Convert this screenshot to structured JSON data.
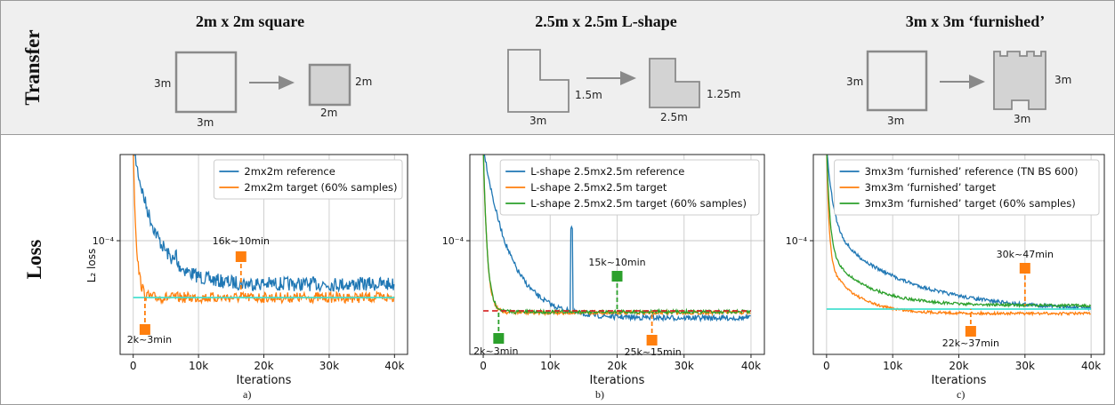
{
  "row_labels": {
    "transfer": "Transfer",
    "loss": "Loss"
  },
  "panel_titles": [
    "2m x 2m square",
    "2.5m x 2.5m L-shape",
    "3m x 3m ‘furnished’"
  ],
  "sketches": [
    {
      "source_side": "3m",
      "source_bottom": "3m",
      "target_side": "2m",
      "target_bottom": "2m"
    },
    {
      "source_side": "1.5m",
      "source_bottom": "3m",
      "target_side": "1.25m",
      "target_bottom": "2.5m"
    },
    {
      "source_side": "3m",
      "source_bottom": "3m",
      "target_side": "3m",
      "target_bottom": "3m"
    }
  ],
  "captions": [
    "a)",
    "b)",
    "c)"
  ],
  "colors": {
    "blue": "#1f77b4",
    "orange": "#ff7f0e",
    "green": "#2ca02c",
    "red": "#d62728",
    "cyan": "#40e0d0"
  },
  "chart_data": [
    {
      "type": "line",
      "xlabel": "Iterations",
      "ylabel": "L₂ loss",
      "y_scale": "log",
      "xlim": [
        -2000,
        42000
      ],
      "x_ticks": [
        0,
        10000,
        20000,
        30000,
        40000
      ],
      "x_tick_labels": [
        "0",
        "10k",
        "20k",
        "30k",
        "40k"
      ],
      "y_tick_label": "10⁻⁴",
      "legend": "top-right",
      "grid": true,
      "series": [
        {
          "name": "2mx2m reference",
          "color": "blue"
        },
        {
          "name": "2mx2m target (60% samples)",
          "color": "orange"
        }
      ],
      "annotations": [
        {
          "label": "16k~10min",
          "color": "orange"
        },
        {
          "label": "2k~3min",
          "color": "orange"
        }
      ]
    },
    {
      "type": "line",
      "xlabel": "Iterations",
      "y_scale": "log",
      "xlim": [
        -2000,
        42000
      ],
      "x_ticks": [
        0,
        10000,
        20000,
        30000,
        40000
      ],
      "x_tick_labels": [
        "0",
        "10k",
        "20k",
        "30k",
        "40k"
      ],
      "y_tick_label": "10⁻⁴",
      "legend": "top-right",
      "grid": true,
      "series": [
        {
          "name": "L-shape 2.5mx2.5m reference",
          "color": "blue"
        },
        {
          "name": "L-shape 2.5mx2.5m target",
          "color": "orange"
        },
        {
          "name": "L-shape 2.5mx2.5m target (60% samples)",
          "color": "green"
        }
      ],
      "annotations": [
        {
          "label": "15k~10min",
          "color": "green"
        },
        {
          "label": "2k~3min",
          "color": "green"
        },
        {
          "label": "25k~15min",
          "color": "orange"
        }
      ]
    },
    {
      "type": "line",
      "xlabel": "Iterations",
      "y_scale": "log",
      "xlim": [
        -2000,
        42000
      ],
      "x_ticks": [
        0,
        10000,
        20000,
        30000,
        40000
      ],
      "x_tick_labels": [
        "0",
        "10k",
        "20k",
        "30k",
        "40k"
      ],
      "y_tick_label": "10⁻⁴",
      "legend": "top-right",
      "grid": true,
      "series": [
        {
          "name": "3mx3m ‘furnished’ reference (TN BS 600)",
          "color": "blue"
        },
        {
          "name": "3mx3m ‘furnished’ target",
          "color": "orange"
        },
        {
          "name": "3mx3m ‘furnished’ target (60% samples)",
          "color": "green"
        }
      ],
      "annotations": [
        {
          "label": "30k~47min",
          "color": "orange"
        },
        {
          "label": "22k~37min",
          "color": "orange"
        }
      ]
    }
  ]
}
